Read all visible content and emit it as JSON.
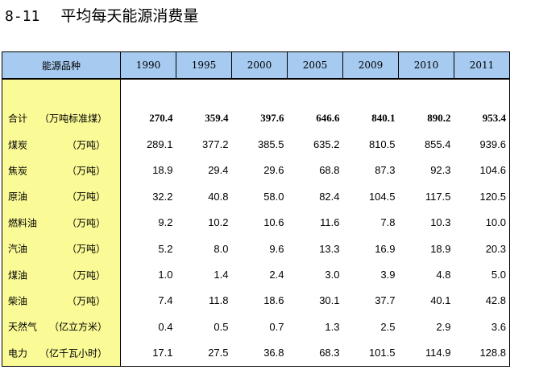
{
  "title": {
    "number": "8-11",
    "text": "平均每天能源消费量"
  },
  "table": {
    "header_label": "能源品种",
    "years": [
      "1990",
      "1995",
      "2000",
      "2005",
      "2009",
      "2010",
      "2011"
    ],
    "rows": [
      {
        "name": "合计",
        "unit": "（万吨标准煤）",
        "values": [
          "270.4",
          "359.4",
          "397.6",
          "646.6",
          "840.1",
          "890.2",
          "953.4"
        ],
        "bold": true
      },
      {
        "name": "煤炭",
        "unit": "（万吨）",
        "values": [
          "289.1",
          "377.2",
          "385.5",
          "635.2",
          "810.5",
          "855.4",
          "939.6"
        ]
      },
      {
        "name": "焦炭",
        "unit": "（万吨）",
        "values": [
          "18.9",
          "29.4",
          "29.6",
          "68.8",
          "87.3",
          "92.3",
          "104.6"
        ]
      },
      {
        "name": "原油",
        "unit": "（万吨）",
        "values": [
          "32.2",
          "40.8",
          "58.0",
          "82.4",
          "104.5",
          "117.5",
          "120.5"
        ]
      },
      {
        "name": "燃料油",
        "unit": "（万吨）",
        "values": [
          "9.2",
          "10.2",
          "10.6",
          "11.6",
          "7.8",
          "10.3",
          "10.0"
        ]
      },
      {
        "name": "汽油",
        "unit": "（万吨）",
        "values": [
          "5.2",
          "8.0",
          "9.6",
          "13.3",
          "16.9",
          "18.9",
          "20.3"
        ]
      },
      {
        "name": "煤油",
        "unit": "（万吨）",
        "values": [
          "1.0",
          "1.4",
          "2.4",
          "3.0",
          "3.9",
          "4.8",
          "5.0"
        ]
      },
      {
        "name": "柴油",
        "unit": "（万吨）",
        "values": [
          "7.4",
          "11.8",
          "18.6",
          "30.1",
          "37.7",
          "40.1",
          "42.8"
        ]
      },
      {
        "name": "天然气",
        "unit": "（亿立方米）",
        "values": [
          "0.4",
          "0.5",
          "0.7",
          "1.3",
          "2.5",
          "2.9",
          "3.6"
        ]
      },
      {
        "name": "电力",
        "unit": "（亿千瓦小时）",
        "values": [
          "17.1",
          "27.5",
          "36.8",
          "68.3",
          "101.5",
          "114.9",
          "128.8"
        ]
      }
    ]
  }
}
